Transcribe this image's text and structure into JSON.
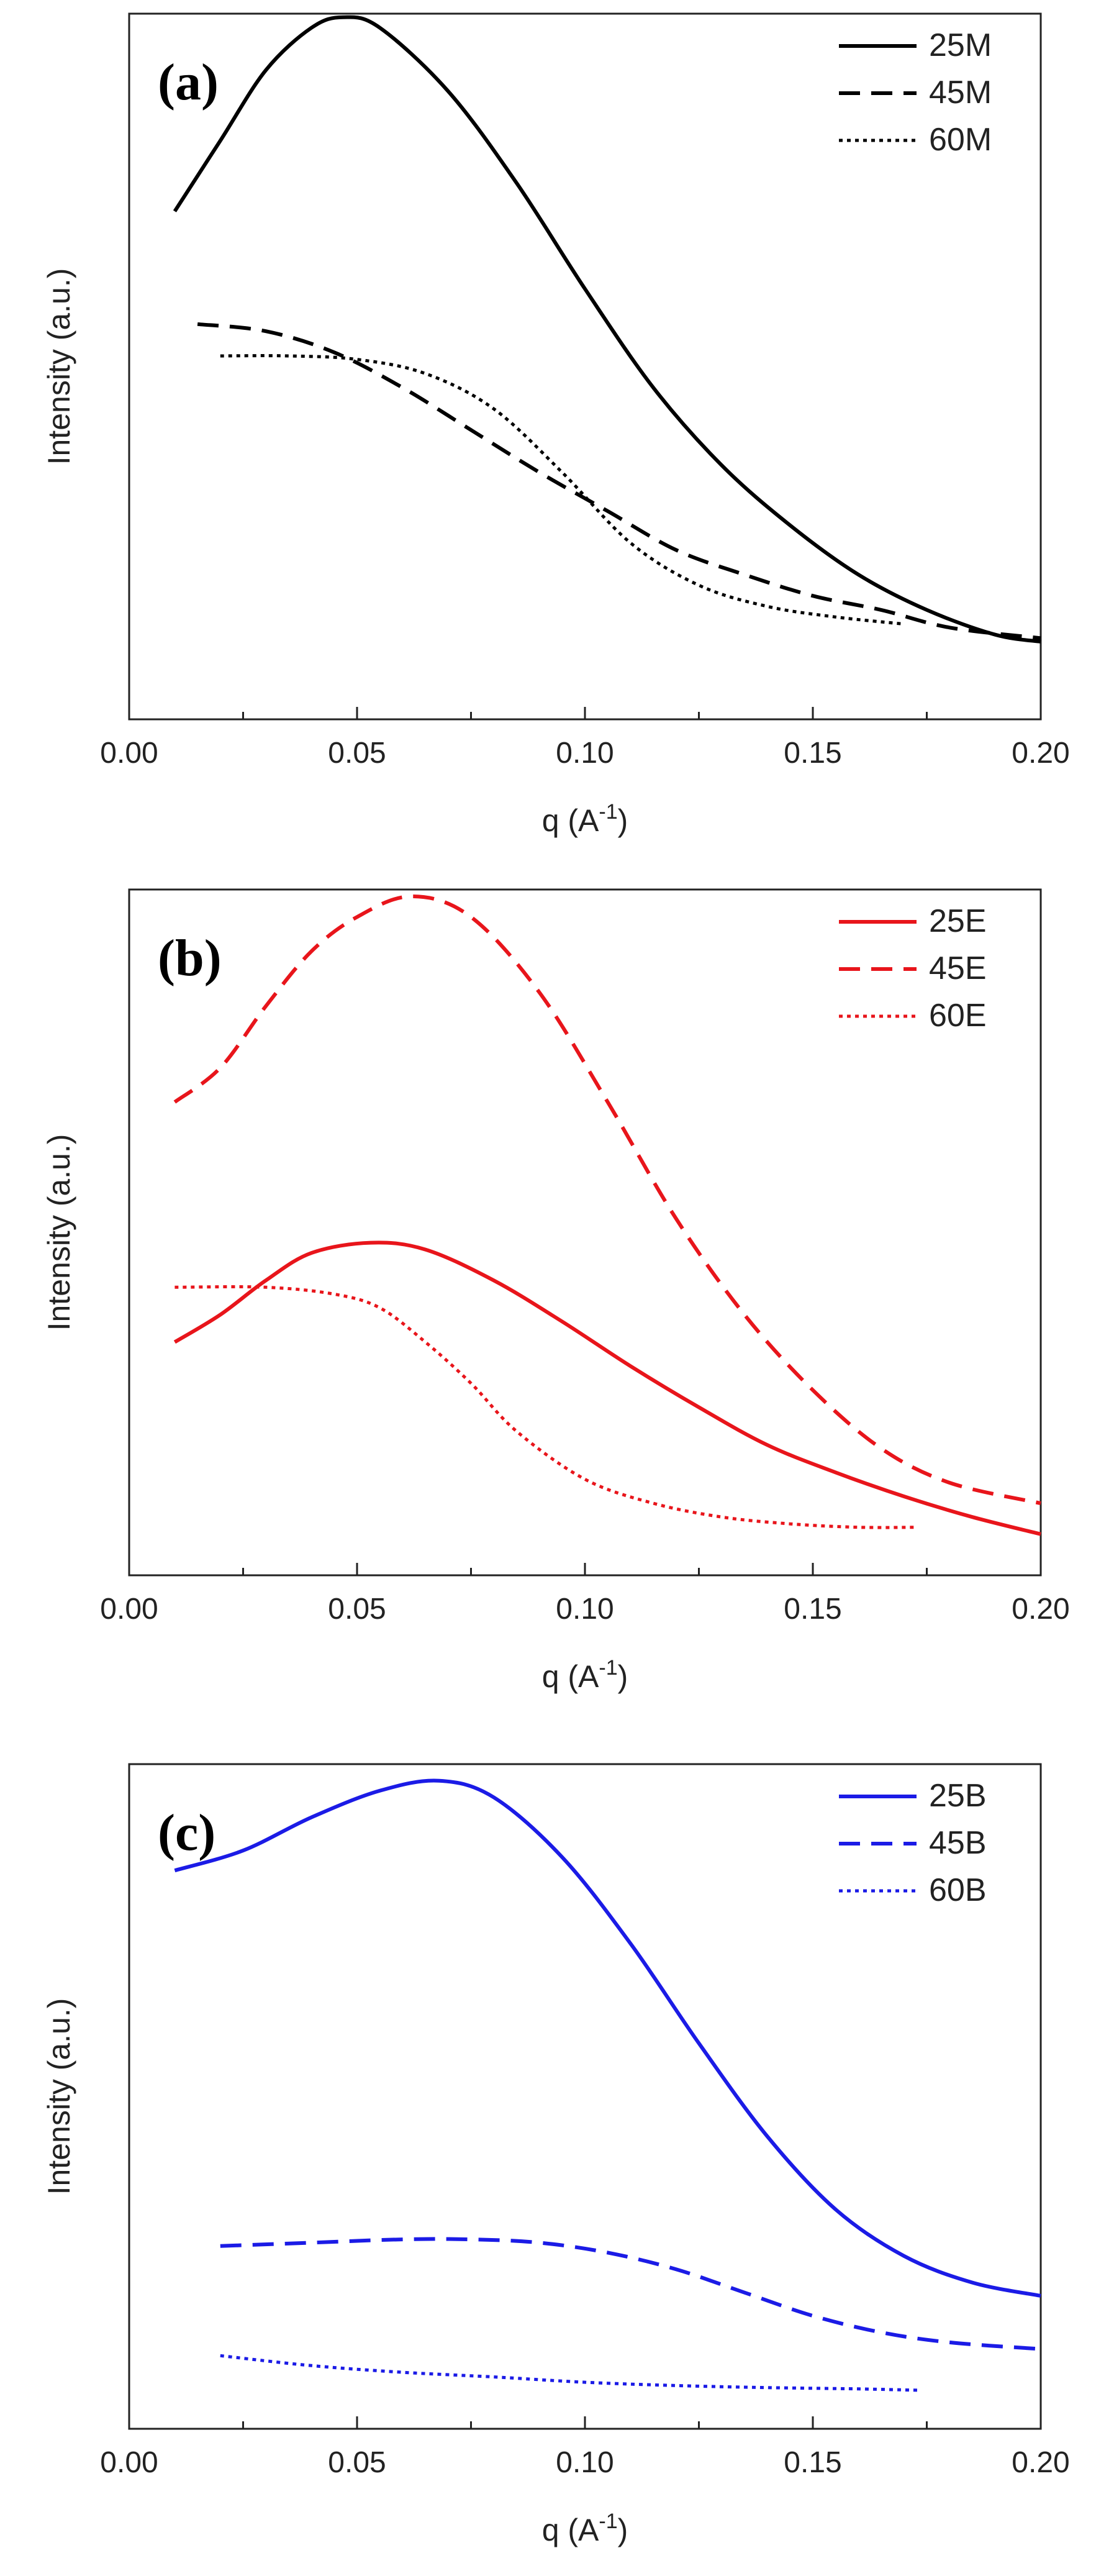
{
  "chart_data": [
    {
      "type": "line",
      "panel_label": "(a)",
      "xlabel": "q (A",
      "xlabel_sup": "-1",
      "xlabel_close": ")",
      "ylabel": "Intensity (a.u.)",
      "xlim": [
        0.0,
        0.2
      ],
      "ylim": [
        0,
        100
      ],
      "xticks": [
        "0.00",
        "0.05",
        "0.10",
        "0.15",
        "0.20"
      ],
      "color": "#000000",
      "legend_position": "top-right",
      "series": [
        {
          "name": "25M",
          "style": "solid",
          "x": [
            0.01,
            0.02,
            0.03,
            0.04,
            0.047,
            0.055,
            0.07,
            0.085,
            0.1,
            0.115,
            0.13,
            0.145,
            0.16,
            0.175,
            0.19,
            0.2
          ],
          "y": [
            72,
            82,
            92,
            98,
            99.5,
            98,
            89,
            76,
            61,
            47,
            36,
            27.5,
            20.5,
            15.5,
            12,
            11
          ]
        },
        {
          "name": "45M",
          "style": "dashed",
          "x": [
            0.015,
            0.03,
            0.045,
            0.06,
            0.075,
            0.09,
            0.105,
            0.12,
            0.135,
            0.15,
            0.165,
            0.18,
            0.2
          ],
          "y": [
            56,
            55,
            52,
            47,
            41,
            35,
            29.5,
            24,
            20.5,
            17.5,
            15.5,
            13,
            11.5
          ]
        },
        {
          "name": "60M",
          "style": "dotted",
          "x": [
            0.02,
            0.035,
            0.05,
            0.065,
            0.08,
            0.095,
            0.11,
            0.125,
            0.14,
            0.155,
            0.17
          ],
          "y": [
            51.5,
            51.5,
            51,
            49,
            44,
            35,
            25,
            19,
            16,
            14.5,
            13.5
          ]
        }
      ]
    },
    {
      "type": "line",
      "panel_label": "(b)",
      "xlabel": "q (A",
      "xlabel_sup": "-1",
      "xlabel_close": ")",
      "ylabel": "Intensity (a.u.)",
      "xlim": [
        0.0,
        0.2
      ],
      "ylim": [
        0,
        100
      ],
      "xticks": [
        "0.00",
        "0.05",
        "0.10",
        "0.15",
        "0.20"
      ],
      "color": "#e8151b",
      "legend_position": "top-right",
      "series": [
        {
          "name": "25E",
          "style": "solid",
          "x": [
            0.01,
            0.02,
            0.03,
            0.04,
            0.053,
            0.065,
            0.08,
            0.095,
            0.11,
            0.125,
            0.14,
            0.155,
            0.17,
            0.185,
            0.2
          ],
          "y": [
            34,
            38,
            43,
            47,
            48.5,
            47.5,
            43,
            37,
            30.5,
            24.5,
            19,
            15,
            11.5,
            8.5,
            6
          ]
        },
        {
          "name": "45E",
          "style": "dashed",
          "x": [
            0.01,
            0.02,
            0.03,
            0.04,
            0.05,
            0.062,
            0.075,
            0.09,
            0.105,
            0.12,
            0.135,
            0.15,
            0.165,
            0.18,
            0.2
          ],
          "y": [
            69,
            74,
            83,
            91,
            96,
            99,
            96,
            85,
            69,
            52,
            38,
            27,
            18.5,
            13.5,
            10.5
          ]
        },
        {
          "name": "60E",
          "style": "dotted",
          "x": [
            0.01,
            0.03,
            0.045,
            0.055,
            0.065,
            0.075,
            0.085,
            0.1,
            0.115,
            0.13,
            0.145,
            0.16,
            0.173
          ],
          "y": [
            42,
            42,
            41,
            39,
            34,
            28,
            21,
            14,
            10.5,
            8.5,
            7.5,
            7,
            7
          ]
        }
      ]
    },
    {
      "type": "line",
      "panel_label": "(c)",
      "xlabel": "q (A",
      "xlabel_sup": "-1",
      "xlabel_close": ")",
      "ylabel": "Intensity (a.u.)",
      "xlim": [
        0.0,
        0.2
      ],
      "ylim": [
        0,
        100
      ],
      "xticks": [
        "0.00",
        "0.05",
        "0.10",
        "0.15",
        "0.20"
      ],
      "color": "#1b1be6",
      "legend_position": "top-right",
      "series": [
        {
          "name": "25B",
          "style": "solid",
          "x": [
            0.01,
            0.025,
            0.04,
            0.055,
            0.068,
            0.08,
            0.095,
            0.11,
            0.125,
            0.14,
            0.155,
            0.17,
            0.185,
            0.2
          ],
          "y": [
            84,
            87,
            92,
            96,
            97.5,
            95,
            86,
            73,
            58,
            44,
            33,
            26,
            22,
            20
          ]
        },
        {
          "name": "45B",
          "style": "dashed",
          "x": [
            0.02,
            0.04,
            0.06,
            0.075,
            0.09,
            0.105,
            0.12,
            0.135,
            0.15,
            0.165,
            0.18,
            0.2
          ],
          "y": [
            27.5,
            28,
            28.5,
            28.5,
            28,
            26.5,
            24,
            20.5,
            17,
            14.5,
            13,
            12
          ]
        },
        {
          "name": "60B",
          "style": "dotted",
          "x": [
            0.02,
            0.04,
            0.06,
            0.08,
            0.1,
            0.12,
            0.14,
            0.16,
            0.173
          ],
          "y": [
            11,
            9.5,
            8.5,
            7.8,
            7,
            6.5,
            6.2,
            6,
            5.8
          ]
        }
      ]
    }
  ]
}
